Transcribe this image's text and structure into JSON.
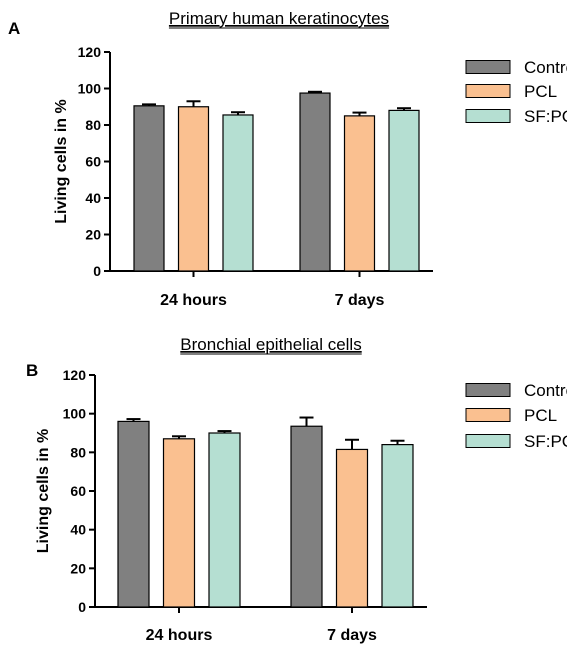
{
  "chart_data": [
    {
      "type": "bar",
      "panel": "A",
      "title": "Primary human keratinocytes",
      "xlabel": "",
      "ylabel": "Living cells in %",
      "ylim": [
        0,
        120
      ],
      "yticks": [
        0,
        20,
        40,
        60,
        80,
        100,
        120
      ],
      "categories": [
        "24 hours",
        "7 days"
      ],
      "series": [
        {
          "name": "Control",
          "color": "#808080",
          "values": [
            90.5,
            97.5
          ],
          "errors": [
            0.8,
            0.7
          ]
        },
        {
          "name": "PCL",
          "color": "#FAC090",
          "values": [
            90.0,
            85.0
          ],
          "errors": [
            3.0,
            1.8
          ]
        },
        {
          "name": "SF:PCL",
          "color": "#B5DFD2",
          "values": [
            85.5,
            88.0
          ],
          "errors": [
            1.5,
            1.2
          ]
        }
      ],
      "error_bars": true,
      "grid": false,
      "legend": "right"
    },
    {
      "type": "bar",
      "panel": "B",
      "title": "Bronchial epithelial cells",
      "xlabel": "",
      "ylabel": "Living cells in %",
      "ylim": [
        0,
        120
      ],
      "yticks": [
        0,
        20,
        40,
        60,
        80,
        100,
        120
      ],
      "categories": [
        "24 hours",
        "7 days"
      ],
      "series": [
        {
          "name": "Control",
          "color": "#808080",
          "values": [
            96.0,
            93.5
          ],
          "errors": [
            1.2,
            4.5
          ]
        },
        {
          "name": "PCL",
          "color": "#FAC090",
          "values": [
            87.0,
            81.5
          ],
          "errors": [
            1.3,
            5.0
          ]
        },
        {
          "name": "SF:PCL",
          "color": "#B5DFD2",
          "values": [
            90.0,
            84.0
          ],
          "errors": [
            1.0,
            2.0
          ]
        }
      ],
      "error_bars": true,
      "grid": false,
      "legend": "right"
    }
  ]
}
